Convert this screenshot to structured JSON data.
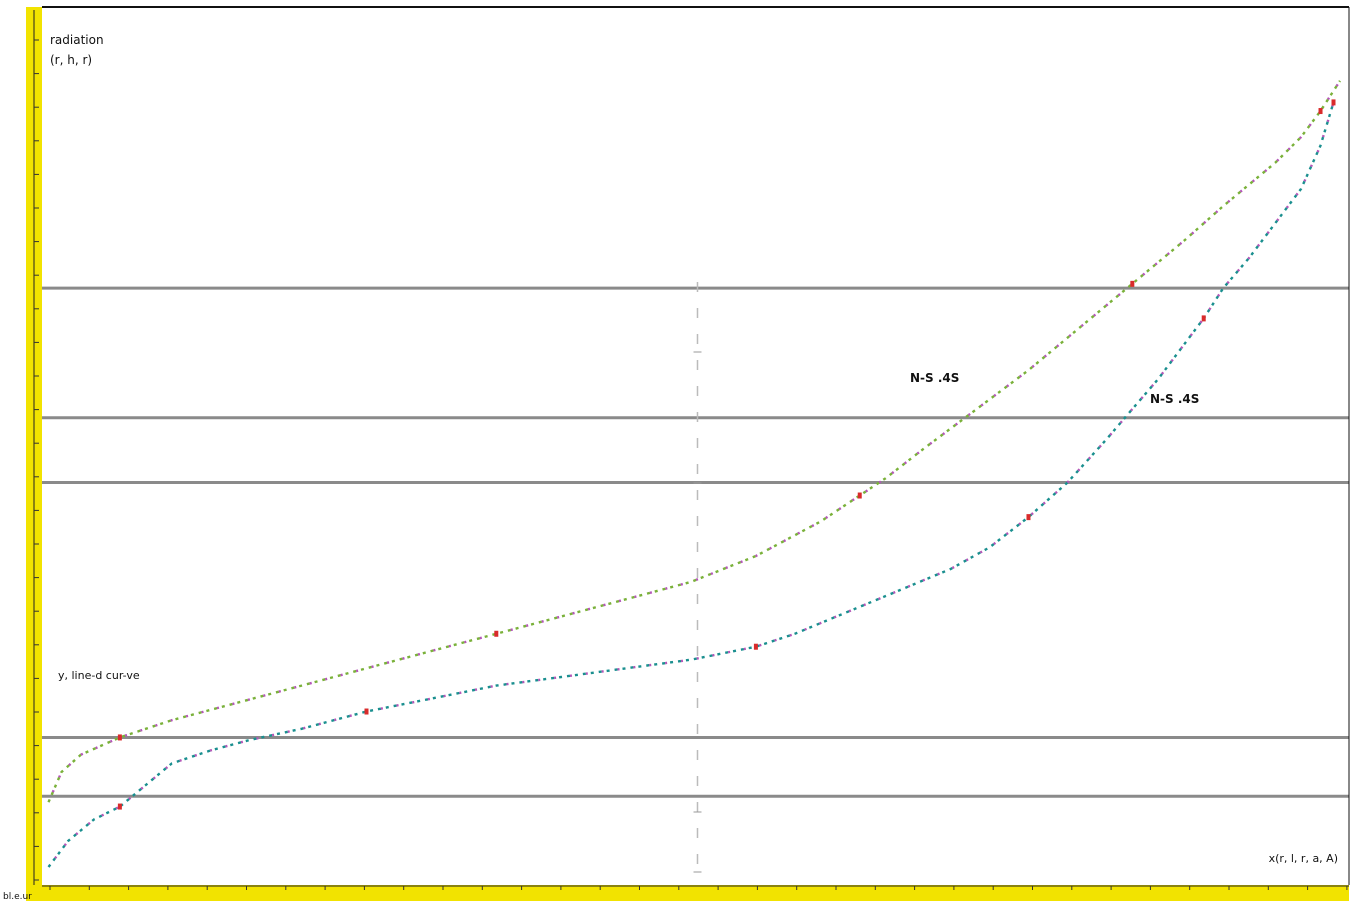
{
  "labels": {
    "y_name": "radiation",
    "y_unit": "(r, h, r)",
    "legend_note": "y, line-d  cur-ve",
    "x_unit": "x(r, l, r, a, A)",
    "corner": "bl.e.ur"
  },
  "chart_data": {
    "type": "line",
    "title": "",
    "xlabel": "",
    "ylabel": "",
    "xlim": [
      0,
      100
    ],
    "ylim": [
      0,
      100
    ],
    "grid": "horizontal",
    "reference_lines_y": [
      9.7,
      16.5,
      46,
      53.5,
      68.5
    ],
    "center_axis_x": 50.5,
    "series": [
      {
        "name": "N-S .4S",
        "points": [
          [
            0.5,
            9
          ],
          [
            1.5,
            12.5
          ],
          [
            3,
            14.5
          ],
          [
            6,
            16.5
          ],
          [
            10,
            18.5
          ],
          [
            15,
            20.5
          ],
          [
            20,
            22.5
          ],
          [
            25,
            24.5
          ],
          [
            30,
            26.5
          ],
          [
            35,
            28.5
          ],
          [
            40,
            30.5
          ],
          [
            45,
            32.5
          ],
          [
            50,
            34.5
          ],
          [
            55,
            37.5
          ],
          [
            60,
            41.5
          ],
          [
            63,
            44.5
          ],
          [
            65,
            46.5
          ],
          [
            68,
            50
          ],
          [
            72,
            54.5
          ],
          [
            76,
            59
          ],
          [
            80,
            64
          ],
          [
            84,
            69
          ],
          [
            88,
            74
          ],
          [
            91,
            78
          ],
          [
            93,
            80.5
          ],
          [
            95,
            83
          ],
          [
            97,
            86
          ],
          [
            98.5,
            89
          ],
          [
            100,
            92.5
          ]
        ]
      },
      {
        "name": "N-S .4S",
        "points": [
          [
            0.5,
            1.5
          ],
          [
            2,
            4.5
          ],
          [
            4,
            7
          ],
          [
            6,
            8.5
          ],
          [
            8,
            11
          ],
          [
            10,
            13.5
          ],
          [
            13,
            15
          ],
          [
            16,
            16.2
          ],
          [
            20,
            17.5
          ],
          [
            25,
            19.5
          ],
          [
            30,
            21
          ],
          [
            35,
            22.5
          ],
          [
            40,
            23.5
          ],
          [
            45,
            24.5
          ],
          [
            50,
            25.5
          ],
          [
            55,
            27
          ],
          [
            58,
            28.5
          ],
          [
            62,
            31
          ],
          [
            66,
            33.5
          ],
          [
            70,
            36
          ],
          [
            73,
            38.5
          ],
          [
            76,
            42
          ],
          [
            79,
            46
          ],
          [
            82,
            51
          ],
          [
            84,
            54.5
          ],
          [
            86,
            58
          ],
          [
            88,
            62
          ],
          [
            89.5,
            65
          ],
          [
            91,
            68.5
          ],
          [
            93,
            72
          ],
          [
            95,
            76
          ],
          [
            97,
            80
          ],
          [
            98.5,
            85
          ],
          [
            99.5,
            90
          ]
        ]
      }
    ]
  }
}
